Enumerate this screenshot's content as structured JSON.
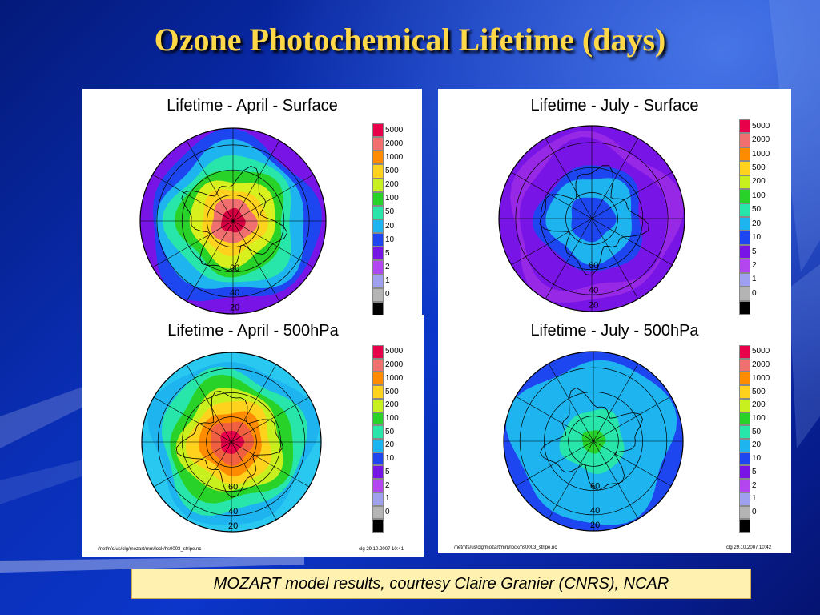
{
  "slide": {
    "title": "Ozone Photochemical Lifetime (days)",
    "credit": "MOZART model results, courtesy Claire Granier (CNRS), NCAR"
  },
  "colorbar": {
    "levels": [
      "5000",
      "2000",
      "1000",
      "500",
      "200",
      "100",
      "50",
      "20",
      "10",
      "5",
      "2",
      "1",
      "0"
    ],
    "colors": [
      "#e8004a",
      "#f07070",
      "#ff8c00",
      "#ffd21e",
      "#c8f01e",
      "#28d228",
      "#28e6aa",
      "#1eb4f0",
      "#1e46f0",
      "#7814e6",
      "#b446f0",
      "#a0a0f0",
      "#b4b4b4",
      "#000000"
    ]
  },
  "panels": [
    {
      "label": "Lifetime - April - Surface",
      "lat_labels": [
        "60",
        "40",
        "20"
      ],
      "palette": [
        "#d80040",
        "#f07070",
        "#ffd21e",
        "#d8f01e",
        "#28d228",
        "#28e6aa",
        "#1eb4f0",
        "#1e46f0",
        "#7814e6"
      ]
    },
    {
      "label": "Lifetime - July - Surface",
      "lat_labels": [
        "60",
        "40",
        "20"
      ],
      "palette": [
        "#1e46f0",
        "#1e46f0",
        "#1eb4f0",
        "#1eb4f0",
        "#1e46f0",
        "#7814e6",
        "#7814e6",
        "#9628e6",
        "#7814e6"
      ]
    },
    {
      "label": "Lifetime - April - 500hPa",
      "lat_labels": [
        "60",
        "40",
        "20"
      ],
      "footer_left": "/net/nfs/us/clg/mozart/mm/lock/hs0003_stripe.nc",
      "footer_right": "clg 29.10.2007 10:41",
      "palette": [
        "#e8004a",
        "#f06040",
        "#ff8c00",
        "#ffd21e",
        "#c8f01e",
        "#28d228",
        "#28e6aa",
        "#1eb4f0",
        "#28c8f0"
      ]
    },
    {
      "label": "Lifetime - July - 500hPa",
      "lat_labels": [
        "60",
        "40",
        "20"
      ],
      "footer_left": "/net/nfs/us/clg/mozart/mm/lock/hs0003_stripe.nc",
      "footer_right": "clg 29.10.2007 10:42",
      "palette": [
        "#28d228",
        "#28e6aa",
        "#28e6aa",
        "#1eb4f0",
        "#1eb4f0",
        "#1eb4f0",
        "#1eb4f0",
        "#1eb4f0",
        "#1e46f0"
      ]
    }
  ]
}
